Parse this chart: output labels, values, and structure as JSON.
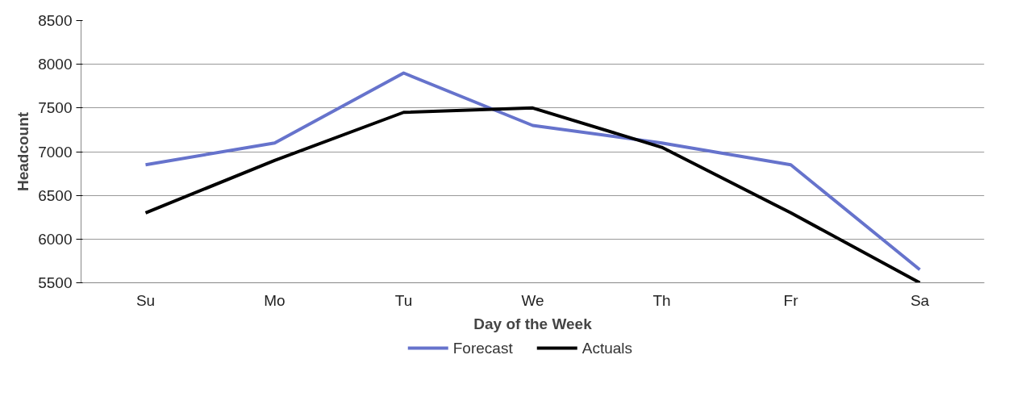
{
  "chart_data": {
    "type": "line",
    "xlabel": "Day of the Week",
    "ylabel": "Headcount",
    "categories": [
      "Su",
      "Mo",
      "Tu",
      "We",
      "Th",
      "Fr",
      "Sa"
    ],
    "series": [
      {
        "name": "Forecast",
        "color": "#6673cc",
        "values": [
          6850,
          7100,
          7900,
          7300,
          7100,
          6850,
          5650
        ]
      },
      {
        "name": "Actuals",
        "color": "#000000",
        "values": [
          6300,
          6900,
          7450,
          7500,
          7050,
          6300,
          5500
        ]
      }
    ],
    "ylim": [
      5500,
      8500
    ],
    "yticks": [
      5500,
      6000,
      6500,
      7000,
      7500,
      8000,
      8500
    ],
    "grid": "y",
    "legend": "bottom",
    "marker": "none",
    "line_style": "solid"
  }
}
